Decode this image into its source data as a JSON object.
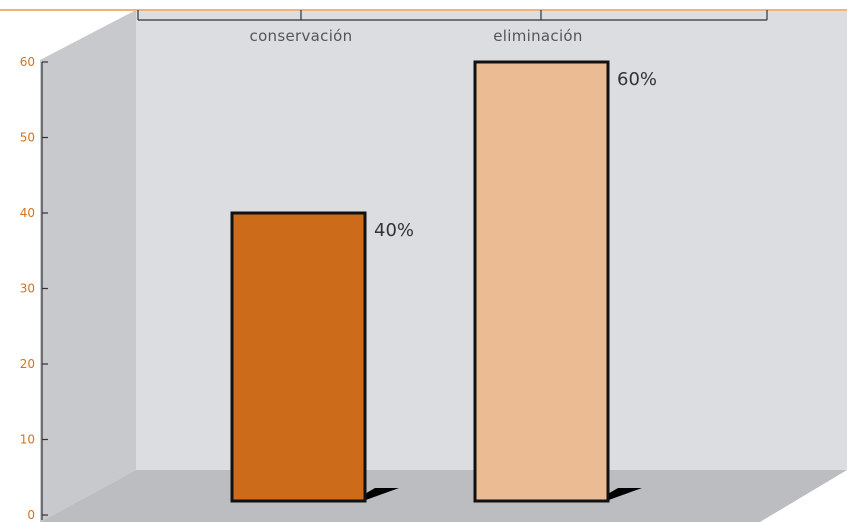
{
  "chart_data": {
    "type": "bar",
    "categories": [
      "conservación",
      "eliminación"
    ],
    "values": [
      40,
      60
    ],
    "data_labels": [
      "40%",
      "60%"
    ],
    "yticks": [
      0,
      10,
      20,
      30,
      40,
      50,
      60
    ],
    "ylim": [
      0,
      60
    ],
    "title": "",
    "xlabel": "",
    "ylabel": "",
    "grid": false,
    "legend": "none",
    "category_label_position": "top",
    "colors": {
      "bars": [
        "#cc6b1a",
        "#ebbc93"
      ],
      "accent_line": "#f0b27e",
      "back_wall": "#dcdde0",
      "side_wall": "#c8c9cc",
      "floor": "#bcbdc0",
      "axis": "#333333"
    }
  }
}
